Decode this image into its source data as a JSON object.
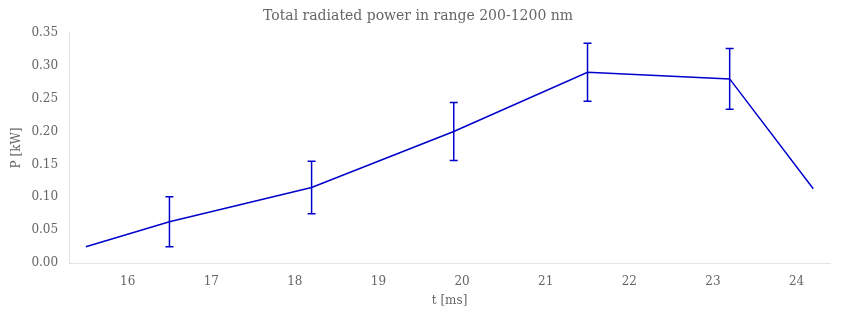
{
  "chart_data": {
    "type": "line",
    "title": "Total radiated power in range 200-1200 nm",
    "xlabel": "t [ms]",
    "ylabel": "P [kW]",
    "x": [
      15.5,
      16.5,
      18.2,
      19.9,
      21.5,
      23.2,
      24.2
    ],
    "values": [
      0.025,
      0.063,
      0.115,
      0.2,
      0.29,
      0.28,
      0.113
    ],
    "yerr": [
      null,
      0.038,
      0.04,
      0.044,
      0.044,
      0.046,
      null
    ],
    "color": "#0000cc",
    "xlim": [
      15.3,
      24.4
    ],
    "ylim": [
      0.0,
      0.35
    ],
    "xticks": [
      16,
      17,
      18,
      19,
      20,
      21,
      22,
      23,
      24
    ],
    "yticks": [
      {
        "value": 0.0,
        "label": "0.00"
      },
      0.05,
      {
        "value": 0.1,
        "label": "0.10"
      },
      0.15,
      {
        "value": 0.2,
        "label": "0.20"
      },
      0.25,
      {
        "value": 0.3,
        "label": "0.30"
      },
      0.35
    ],
    "grid": false
  }
}
